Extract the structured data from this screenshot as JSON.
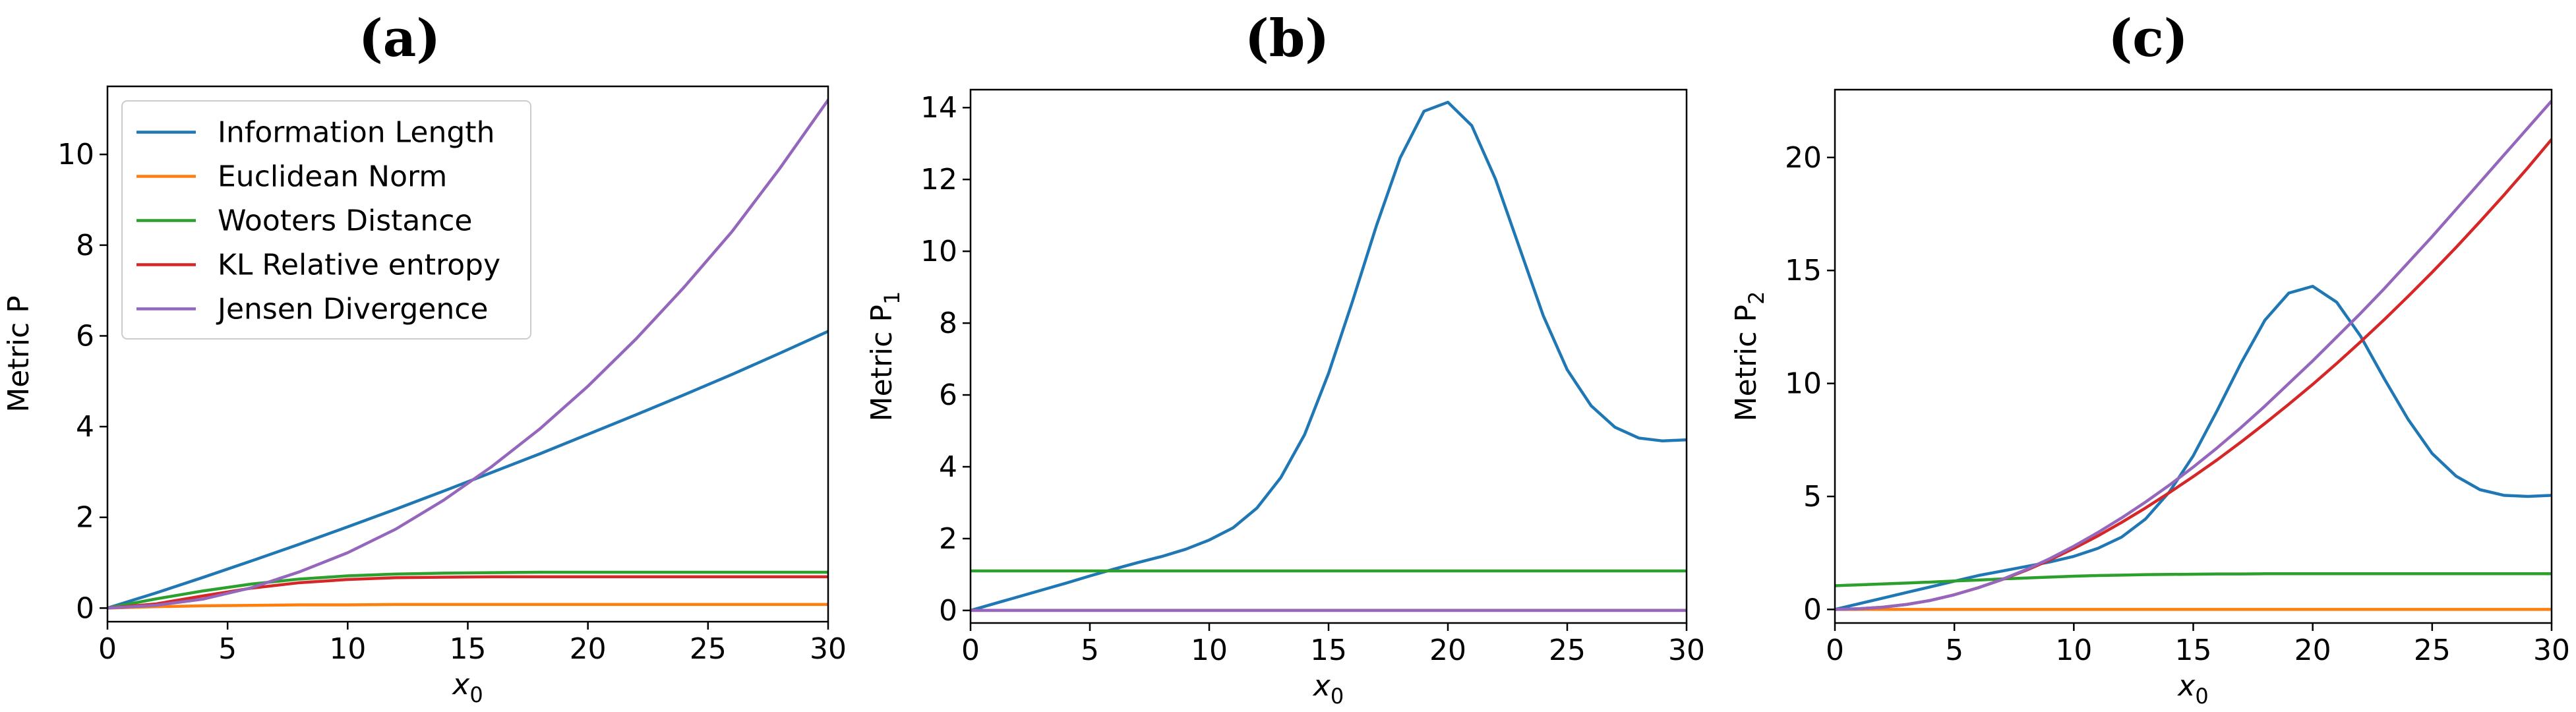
{
  "colors": {
    "blue": "#1f77b4",
    "orange": "#ff7f0e",
    "green": "#2ca02c",
    "red": "#d62728",
    "purple": "#9467bd"
  },
  "chart_data": [
    {
      "type": "line",
      "title": "(a)",
      "xlabel_base": "x",
      "xlabel_sub": "0",
      "ylabel_base": "Metric P",
      "ylabel_sub": "",
      "xlim": [
        0,
        30
      ],
      "ylim": [
        -0.3,
        11.5
      ],
      "xticks": [
        0,
        5,
        10,
        15,
        20,
        25,
        30
      ],
      "yticks": [
        0,
        2,
        4,
        6,
        8,
        10
      ],
      "legend": "top-left",
      "x": [
        0,
        2,
        4,
        6,
        8,
        10,
        12,
        14,
        16,
        18,
        20,
        22,
        24,
        26,
        28,
        30
      ],
      "series": [
        {
          "name": "Information Length",
          "color": "#1f77b4",
          "values": [
            0,
            0.33,
            0.68,
            1.04,
            1.41,
            1.79,
            2.18,
            2.58,
            2.99,
            3.4,
            3.83,
            4.26,
            4.7,
            5.15,
            5.62,
            6.1
          ]
        },
        {
          "name": "Euclidean Norm",
          "color": "#ff7f0e",
          "values": [
            0,
            0.03,
            0.05,
            0.06,
            0.07,
            0.07,
            0.08,
            0.08,
            0.08,
            0.08,
            0.08,
            0.08,
            0.08,
            0.08,
            0.08,
            0.08
          ]
        },
        {
          "name": "Wooters Distance",
          "color": "#2ca02c",
          "values": [
            0,
            0.2,
            0.38,
            0.53,
            0.64,
            0.71,
            0.75,
            0.77,
            0.78,
            0.79,
            0.79,
            0.79,
            0.79,
            0.79,
            0.79,
            0.79
          ]
        },
        {
          "name": "KL Relative entropy",
          "color": "#d62728",
          "values": [
            0,
            0.09,
            0.27,
            0.44,
            0.56,
            0.63,
            0.67,
            0.68,
            0.69,
            0.69,
            0.69,
            0.69,
            0.69,
            0.69,
            0.69,
            0.69
          ]
        },
        {
          "name": "Jensen Divergence",
          "color": "#9467bd",
          "values": [
            0,
            0.06,
            0.2,
            0.45,
            0.8,
            1.22,
            1.74,
            2.38,
            3.12,
            3.95,
            4.89,
            5.93,
            7.07,
            8.3,
            9.7,
            11.2
          ]
        }
      ]
    },
    {
      "type": "line",
      "title": "(b)",
      "xlabel_base": "x",
      "xlabel_sub": "0",
      "ylabel_base": "Metric P",
      "ylabel_sub": "1",
      "xlim": [
        0,
        30
      ],
      "ylim": [
        -0.35,
        14.5
      ],
      "xticks": [
        0,
        5,
        10,
        15,
        20,
        25,
        30
      ],
      "yticks": [
        0,
        2,
        4,
        6,
        8,
        10,
        12,
        14
      ],
      "legend": "none",
      "x": [
        0,
        1,
        2,
        3,
        4,
        5,
        6,
        7,
        8,
        9,
        10,
        11,
        12,
        13,
        14,
        15,
        16,
        17,
        18,
        19,
        20,
        21,
        22,
        23,
        24,
        25,
        26,
        27,
        28,
        29,
        30
      ],
      "series": [
        {
          "color": "#1f77b4",
          "values": [
            0,
            0.19,
            0.38,
            0.57,
            0.76,
            0.96,
            1.15,
            1.33,
            1.5,
            1.7,
            1.96,
            2.3,
            2.85,
            3.7,
            4.9,
            6.6,
            8.6,
            10.7,
            12.6,
            13.9,
            14.15,
            13.5,
            12.0,
            10.1,
            8.2,
            6.7,
            5.7,
            5.1,
            4.8,
            4.72,
            4.75
          ]
        },
        {
          "color": "#2ca02c",
          "values": [
            1.1,
            1.1,
            1.1,
            1.1,
            1.1,
            1.1,
            1.1,
            1.1,
            1.1,
            1.1,
            1.1,
            1.1,
            1.1,
            1.1,
            1.1,
            1.1,
            1.1,
            1.1,
            1.1,
            1.1,
            1.1,
            1.1,
            1.1,
            1.1,
            1.1,
            1.1,
            1.1,
            1.1,
            1.1,
            1.1,
            1.1
          ]
        },
        {
          "color": "#d62728",
          "values": [
            0,
            0,
            0,
            0,
            0,
            0,
            0,
            0,
            0,
            0,
            0,
            0,
            0,
            0,
            0,
            0,
            0,
            0,
            0,
            0,
            0,
            0,
            0,
            0,
            0,
            0,
            0,
            0,
            0,
            0,
            0
          ]
        },
        {
          "color": "#9467bd",
          "values": [
            0,
            0,
            0,
            0,
            0,
            0,
            0,
            0,
            0,
            0,
            0,
            0,
            0,
            0,
            0,
            0,
            0,
            0,
            0,
            0,
            0,
            0,
            0,
            0,
            0,
            0,
            0,
            0,
            0,
            0,
            0
          ]
        }
      ]
    },
    {
      "type": "line",
      "title": "(c)",
      "xlabel_base": "x",
      "xlabel_sub": "0",
      "ylabel_base": "Metric P",
      "ylabel_sub": "2",
      "xlim": [
        0,
        30
      ],
      "ylim": [
        -0.6,
        23
      ],
      "xticks": [
        0,
        5,
        10,
        15,
        20,
        25,
        30
      ],
      "yticks": [
        0,
        5,
        10,
        15,
        20
      ],
      "legend": "none",
      "x": [
        0,
        1,
        2,
        3,
        4,
        5,
        6,
        7,
        8,
        9,
        10,
        11,
        12,
        13,
        14,
        15,
        16,
        17,
        18,
        19,
        20,
        21,
        22,
        23,
        24,
        25,
        26,
        27,
        28,
        29,
        30
      ],
      "series": [
        {
          "color": "#1f77b4",
          "values": [
            0,
            0.25,
            0.5,
            0.75,
            1.0,
            1.25,
            1.5,
            1.7,
            1.9,
            2.1,
            2.35,
            2.7,
            3.2,
            4.0,
            5.2,
            6.8,
            8.8,
            10.9,
            12.8,
            14.0,
            14.3,
            13.6,
            12.1,
            10.2,
            8.4,
            6.9,
            5.9,
            5.3,
            5.05,
            5.0,
            5.05
          ]
        },
        {
          "color": "#ff7f0e",
          "values": [
            0,
            0,
            0,
            0,
            0,
            0,
            0,
            0,
            0,
            0,
            0,
            0,
            0,
            0,
            0,
            0,
            0,
            0,
            0,
            0,
            0,
            0,
            0,
            0,
            0,
            0,
            0,
            0,
            0,
            0,
            0
          ]
        },
        {
          "color": "#2ca02c",
          "values": [
            1.05,
            1.09,
            1.13,
            1.17,
            1.21,
            1.26,
            1.3,
            1.35,
            1.39,
            1.43,
            1.47,
            1.5,
            1.52,
            1.54,
            1.55,
            1.56,
            1.57,
            1.57,
            1.58,
            1.58,
            1.58,
            1.58,
            1.58,
            1.58,
            1.58,
            1.58,
            1.58,
            1.58,
            1.58,
            1.58,
            1.58
          ]
        },
        {
          "color": "#d62728",
          "values": [
            0,
            0.03,
            0.1,
            0.22,
            0.4,
            0.65,
            0.96,
            1.32,
            1.73,
            2.19,
            2.7,
            3.25,
            3.85,
            4.49,
            5.17,
            5.88,
            6.62,
            7.41,
            8.23,
            9.08,
            9.96,
            10.88,
            11.84,
            12.83,
            13.86,
            14.92,
            16.02,
            17.16,
            18.33,
            19.54,
            20.8
          ]
        },
        {
          "color": "#9467bd",
          "values": [
            0,
            0.03,
            0.1,
            0.22,
            0.4,
            0.65,
            0.96,
            1.33,
            1.76,
            2.25,
            2.8,
            3.4,
            4.05,
            4.75,
            5.5,
            6.3,
            7.15,
            8.05,
            9.0,
            10.0,
            11.0,
            12.05,
            13.1,
            14.2,
            15.35,
            16.5,
            17.7,
            18.9,
            20.1,
            21.3,
            22.5
          ]
        }
      ]
    }
  ]
}
